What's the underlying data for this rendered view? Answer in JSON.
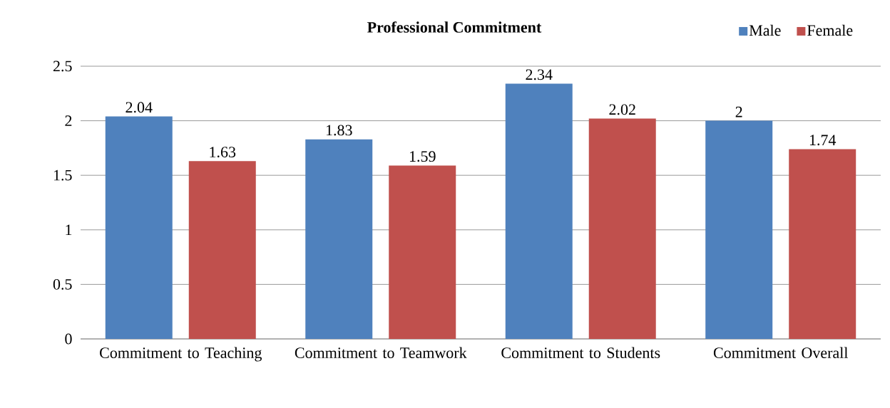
{
  "chart_data": {
    "type": "bar",
    "title": "Professional Commitment",
    "categories": [
      "Commitment to Teaching",
      "Commitment to Teamwork",
      "Commitment to Students",
      "Commitment Overall"
    ],
    "series": [
      {
        "name": "Male",
        "color": "#4f81bd",
        "values": [
          2.04,
          1.83,
          2.34,
          2
        ]
      },
      {
        "name": "Female",
        "color": "#c0504d",
        "values": [
          1.63,
          1.59,
          2.02,
          1.74
        ]
      }
    ],
    "ylim": [
      0,
      2.5
    ],
    "yticks": [
      0,
      0.5,
      1,
      1.5,
      2,
      2.5
    ],
    "grid": "y",
    "legend": "top right",
    "data_labels": true
  }
}
